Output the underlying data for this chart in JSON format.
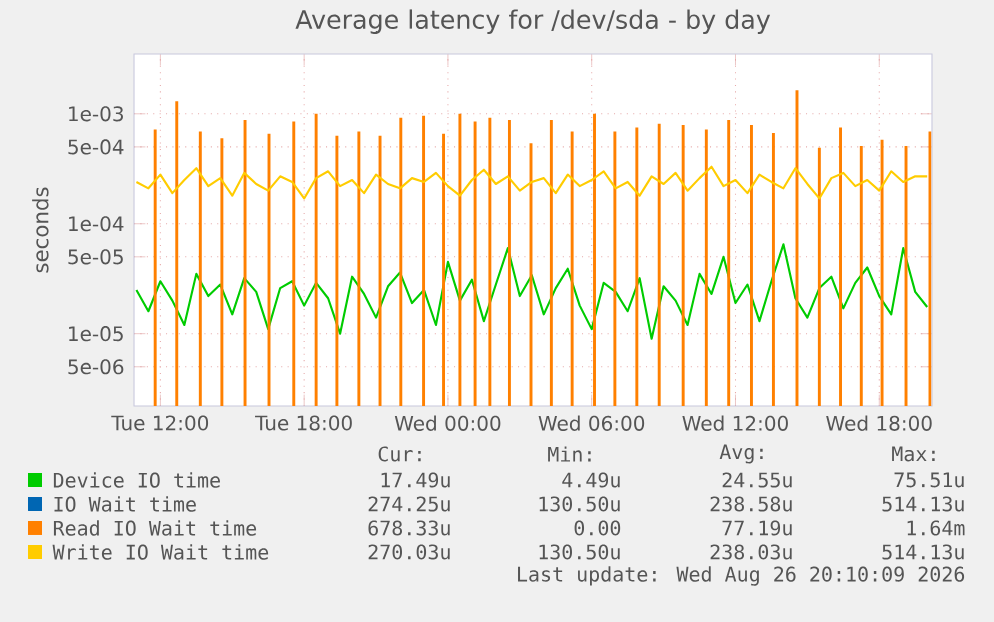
{
  "chart_data": {
    "type": "line",
    "title": "Average latency for /dev/sda - by day",
    "ylabel": "seconds",
    "log": "y",
    "grid": true,
    "legend": "bottom",
    "xlim": [
      "2026-08-25T10:54",
      "2026-08-26T20:12"
    ],
    "ylim": [
      2.2e-06,
      0.0035
    ],
    "xticks": [
      {
        "value": "2026-08-25T12:00",
        "label": "Tue 12:00"
      },
      {
        "value": "2026-08-25T18:00",
        "label": "Tue 18:00"
      },
      {
        "value": "2026-08-26T00:00",
        "label": "Wed 00:00"
      },
      {
        "value": "2026-08-26T06:00",
        "label": "Wed 06:00"
      },
      {
        "value": "2026-08-26T12:00",
        "label": "Wed 12:00"
      },
      {
        "value": "2026-08-26T18:00",
        "label": "Wed 18:00"
      }
    ],
    "yticks": [
      {
        "value": 5e-06,
        "label": "5e-06"
      },
      {
        "value": 1e-05,
        "label": "1e-05"
      },
      {
        "value": 5e-05,
        "label": "5e-05"
      },
      {
        "value": 0.0001,
        "label": "1e-04"
      },
      {
        "value": 0.0005,
        "label": "5e-04"
      },
      {
        "value": 0.001,
        "label": "1e-03"
      }
    ],
    "x": [
      "2026-08-25T11:00",
      "2026-08-25T11:30",
      "2026-08-25T12:00",
      "2026-08-25T12:30",
      "2026-08-25T13:00",
      "2026-08-25T13:30",
      "2026-08-25T14:00",
      "2026-08-25T14:30",
      "2026-08-25T15:00",
      "2026-08-25T15:30",
      "2026-08-25T16:00",
      "2026-08-25T16:30",
      "2026-08-25T17:00",
      "2026-08-25T17:30",
      "2026-08-25T18:00",
      "2026-08-25T18:30",
      "2026-08-25T19:00",
      "2026-08-25T19:30",
      "2026-08-25T20:00",
      "2026-08-25T20:30",
      "2026-08-25T21:00",
      "2026-08-25T21:30",
      "2026-08-25T22:00",
      "2026-08-25T22:30",
      "2026-08-25T23:00",
      "2026-08-25T23:30",
      "2026-08-26T00:00",
      "2026-08-26T00:30",
      "2026-08-26T01:00",
      "2026-08-26T01:30",
      "2026-08-26T02:00",
      "2026-08-26T02:30",
      "2026-08-26T03:00",
      "2026-08-26T03:30",
      "2026-08-26T04:00",
      "2026-08-26T04:30",
      "2026-08-26T05:00",
      "2026-08-26T05:30",
      "2026-08-26T06:00",
      "2026-08-26T06:30",
      "2026-08-26T07:00",
      "2026-08-26T07:30",
      "2026-08-26T08:00",
      "2026-08-26T08:30",
      "2026-08-26T09:00",
      "2026-08-26T09:30",
      "2026-08-26T10:00",
      "2026-08-26T10:30",
      "2026-08-26T11:00",
      "2026-08-26T11:30",
      "2026-08-26T12:00",
      "2026-08-26T12:30",
      "2026-08-26T13:00",
      "2026-08-26T13:30",
      "2026-08-26T14:00",
      "2026-08-26T14:30",
      "2026-08-26T15:00",
      "2026-08-26T15:30",
      "2026-08-26T16:00",
      "2026-08-26T16:30",
      "2026-08-26T17:00",
      "2026-08-26T17:30",
      "2026-08-26T18:00",
      "2026-08-26T18:30",
      "2026-08-26T19:00",
      "2026-08-26T19:30",
      "2026-08-26T20:00"
    ],
    "series": [
      {
        "name": "Device IO time",
        "color": "#00cc00",
        "values": [
          2.5e-05,
          1.6e-05,
          3e-05,
          2e-05,
          1.2e-05,
          3.5e-05,
          2.2e-05,
          2.8e-05,
          1.5e-05,
          3.2e-05,
          2.4e-05,
          1.1e-05,
          2.6e-05,
          3e-05,
          1.8e-05,
          2.9e-05,
          2.1e-05,
          1e-05,
          3.3e-05,
          2.3e-05,
          1.4e-05,
          2.7e-05,
          3.6e-05,
          1.9e-05,
          2.5e-05,
          1.2e-05,
          4.5e-05,
          2e-05,
          3.1e-05,
          1.3e-05,
          2.8e-05,
          6e-05,
          2.2e-05,
          3.4e-05,
          1.5e-05,
          2.6e-05,
          3.9e-05,
          1.8e-05,
          1.1e-05,
          2.9e-05,
          2.4e-05,
          1.6e-05,
          3.2e-05,
          9e-06,
          2.7e-05,
          2e-05,
          1.2e-05,
          3.5e-05,
          2.3e-05,
          5e-05,
          1.9e-05,
          2.8e-05,
          1.3e-05,
          3e-05,
          6.5e-05,
          2.1e-05,
          1.4e-05,
          2.6e-05,
          3.3e-05,
          1.7e-05,
          2.9e-05,
          4e-05,
          2.2e-05,
          1.5e-05,
          6e-05,
          2.4e-05,
          1.75e-05
        ]
      },
      {
        "name": "IO Wait time",
        "color": "#0066b3",
        "values": [
          null,
          null,
          null,
          null,
          null,
          null,
          null,
          null,
          null,
          null,
          null,
          null,
          null,
          null,
          null,
          null,
          null,
          null,
          null,
          null,
          null,
          null,
          null,
          null,
          null,
          null,
          null,
          null,
          null,
          null,
          null,
          null,
          null,
          null,
          null,
          null,
          null,
          null,
          null,
          null,
          null,
          null,
          null,
          null,
          null,
          null,
          null,
          null,
          null,
          null,
          null,
          null,
          null,
          null,
          null,
          null,
          null,
          null,
          null,
          null,
          null,
          null,
          null,
          null,
          null,
          null,
          null
        ]
      },
      {
        "name": "Read IO Wait time",
        "color": "#ff8000",
        "type": "bar",
        "x": [
          "2026-08-25T11:47",
          "2026-08-25T12:41",
          "2026-08-25T13:40",
          "2026-08-25T14:34",
          "2026-08-25T15:32",
          "2026-08-25T16:32",
          "2026-08-25T17:34",
          "2026-08-25T18:30",
          "2026-08-25T19:22",
          "2026-08-25T20:17",
          "2026-08-25T21:10",
          "2026-08-25T22:02",
          "2026-08-25T22:59",
          "2026-08-25T23:49",
          "2026-08-26T00:30",
          "2026-08-26T01:08",
          "2026-08-26T01:45",
          "2026-08-26T02:34",
          "2026-08-26T03:28",
          "2026-08-26T04:19",
          "2026-08-26T05:11",
          "2026-08-26T06:07",
          "2026-08-26T06:58",
          "2026-08-26T07:53",
          "2026-08-26T08:49",
          "2026-08-26T09:49",
          "2026-08-26T10:47",
          "2026-08-26T11:43",
          "2026-08-26T12:40",
          "2026-08-26T13:35",
          "2026-08-26T14:34",
          "2026-08-26T15:30",
          "2026-08-26T16:23",
          "2026-08-26T17:15",
          "2026-08-26T18:07",
          "2026-08-26T19:07",
          "2026-08-26T20:07"
        ],
        "values": [
          0.00072,
          0.0013,
          0.00069,
          0.0006,
          0.00088,
          0.00066,
          0.00085,
          0.001,
          0.00063,
          0.00069,
          0.00063,
          0.00092,
          0.00096,
          0.00066,
          0.001,
          0.00085,
          0.00092,
          0.00088,
          0.00054,
          0.00088,
          0.00069,
          0.001,
          0.00069,
          0.00075,
          0.00081,
          0.00079,
          0.00072,
          0.00088,
          0.00079,
          0.00067,
          0.00164,
          0.00049,
          0.00075,
          0.00051,
          0.00058,
          0.00051,
          0.00069
        ]
      },
      {
        "name": "Write IO Wait time",
        "color": "#ffcc00",
        "values": [
          0.00024,
          0.00021,
          0.00028,
          0.00019,
          0.00025,
          0.00032,
          0.00022,
          0.00026,
          0.00018,
          0.00029,
          0.00023,
          0.0002,
          0.00027,
          0.00024,
          0.00017,
          0.00026,
          0.0003,
          0.00022,
          0.00025,
          0.00019,
          0.00028,
          0.00023,
          0.00021,
          0.00026,
          0.00024,
          0.00029,
          0.00022,
          0.00018,
          0.00025,
          0.00031,
          0.00023,
          0.00027,
          0.0002,
          0.00024,
          0.00026,
          0.00019,
          0.00028,
          0.00022,
          0.00025,
          0.0003,
          0.00021,
          0.00024,
          0.00018,
          0.00027,
          0.00023,
          0.00029,
          0.0002,
          0.00026,
          0.00033,
          0.00022,
          0.00025,
          0.00019,
          0.00028,
          0.00024,
          0.00021,
          0.00032,
          0.00023,
          0.00017,
          0.00026,
          0.00029,
          0.00022,
          0.00025,
          0.0002,
          0.0003,
          0.00024,
          0.00027,
          0.00027
        ]
      }
    ],
    "annotations": [
      "Cur:",
      "Min:",
      "Avg:",
      "Max:",
      "17.49u",
      "4.49u",
      "24.55u",
      "75.51u",
      "274.25u",
      "130.50u",
      "238.58u",
      "514.13u",
      "678.33u",
      "0.00",
      "77.19u",
      "1.64m",
      "270.03u",
      "130.50u",
      "238.03u",
      "514.13u",
      "Last update: Wed Aug 26 20:10:09 2026"
    ]
  }
}
